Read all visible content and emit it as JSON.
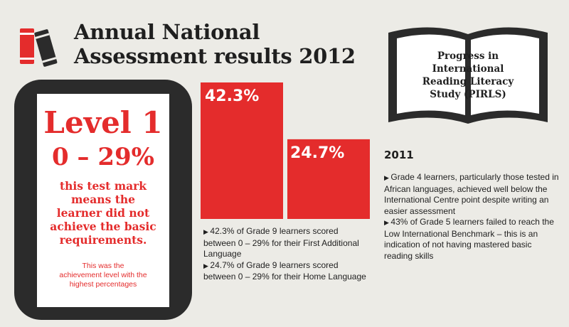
{
  "title": "Annual National\nAssessment results 2012",
  "level_box": {
    "level": "Level 1",
    "range": "0 – 29%",
    "description": "this test mark\nmeans the\nlearner did not\nachieve the basic\nrequirements.",
    "note": "This was the\nachievement level with the\nhighest percentages"
  },
  "chart_data": {
    "type": "bar",
    "title": "",
    "xlabel": "",
    "ylabel": "",
    "categories": [
      "First Additional Language",
      "Home Language"
    ],
    "values": [
      42.3,
      24.7
    ],
    "value_labels": [
      "42.3%",
      "24.7%"
    ],
    "ylim": [
      0,
      42.3
    ],
    "grid": false,
    "colors": {
      "bar": "#e42c2c"
    }
  },
  "ana_notes": [
    "42.3% of Grade 9 learners scored between 0 – 29% for their First Additional Language",
    "24.7% of Grade 9 learners scored between 0 – 29% for their Home Language"
  ],
  "pirls": {
    "title": "Progress in\nInternational\nReading Literacy\nStudy (PIRLS)",
    "year": "2011",
    "notes": [
      "Grade 4 learners, particularly those tested in African languages, achieved well below the International Centre point despite writing an easier assessment",
      "43% of Grade 5 learners failed to reach the Low International Benchmark – this is an indication of not having mastered basic reading skills"
    ]
  },
  "icons": {
    "books": "books-icon",
    "book": "open-book-icon",
    "bullet": "triangle-bullet-icon"
  },
  "colors": {
    "accent": "#e42c2c",
    "dark": "#2b2b2b",
    "background": "#ecebe6"
  }
}
